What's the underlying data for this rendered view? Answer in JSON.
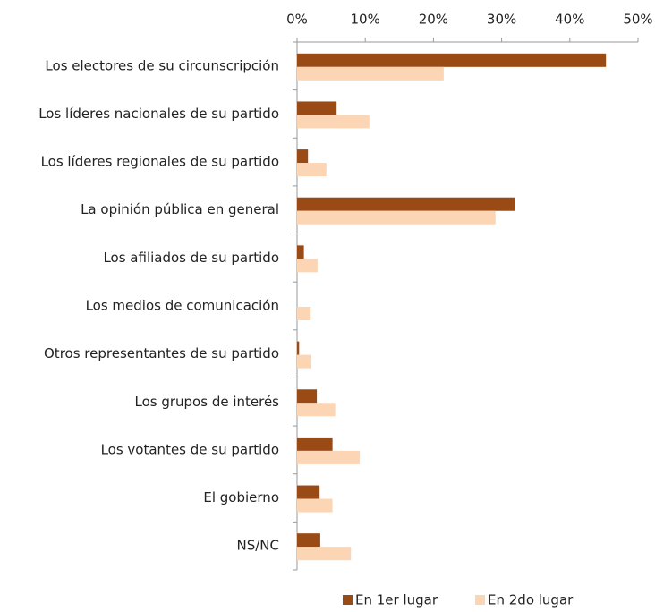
{
  "chart_data": {
    "type": "hbar",
    "categories": [
      "Los electores de su circunscripción",
      "Los líderes nacionales de su partido",
      "Los líderes regionales de su partido",
      "La opinión pública en general",
      "Los afiliados de su partido",
      "Los medios de comunicación",
      "Otros representantes de su partido",
      "Los grupos de interés",
      "Los votantes de su partido",
      "El gobierno",
      "NS/NC"
    ],
    "series": [
      {
        "name": "En 1er lugar",
        "color": "#9a4a14",
        "values": [
          45.3,
          5.8,
          1.6,
          32,
          1.0,
          0,
          0.3,
          2.9,
          5.2,
          3.3,
          3.4
        ]
      },
      {
        "name": "En 2do lugar",
        "color": "#fcd5b4",
        "values": [
          21.5,
          10.6,
          4.3,
          29.1,
          3.0,
          2.0,
          2.1,
          5.6,
          9.2,
          5.2,
          7.9
        ]
      }
    ],
    "xlim": [
      0,
      50
    ],
    "xticks": [
      {
        "value": 0,
        "label": "0%"
      },
      {
        "value": 10,
        "label": "10%"
      },
      {
        "value": 20,
        "label": "20%"
      },
      {
        "value": 30,
        "label": "30%"
      },
      {
        "value": 40,
        "label": "40%"
      },
      {
        "value": 50,
        "label": "50%"
      }
    ],
    "legend": "bottom"
  }
}
